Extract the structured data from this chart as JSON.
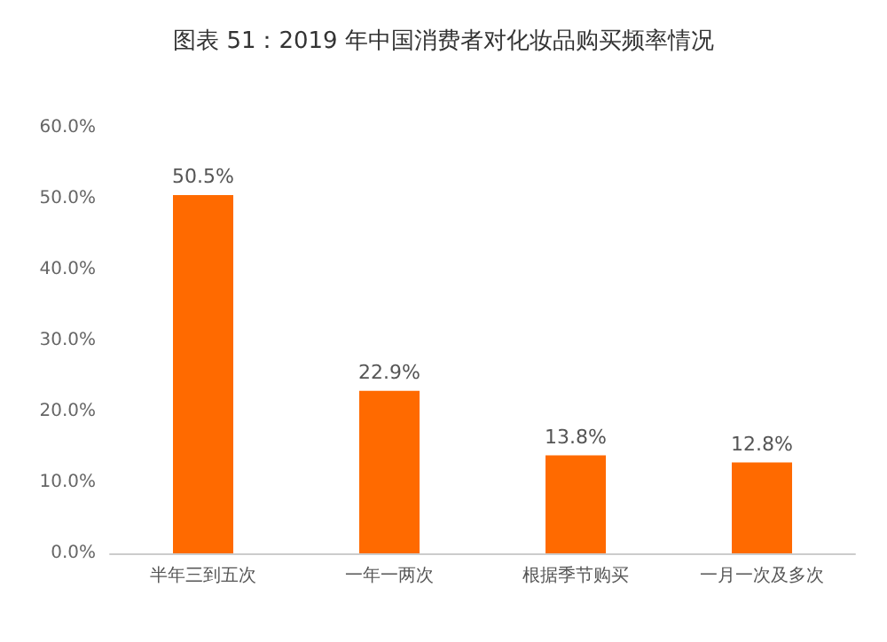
{
  "chart_data": {
    "type": "bar",
    "title": "图表 51：2019 年中国消费者对化妆品购买频率情况",
    "categories": [
      "半年三到五次",
      "一年一两次",
      "根据季节购买",
      "一月一次及多次"
    ],
    "values": [
      50.5,
      22.9,
      13.8,
      12.8
    ],
    "value_labels": [
      "50.5%",
      "22.9%",
      "13.8%",
      "12.8%"
    ],
    "color": "#ff6a00",
    "ylim": [
      0,
      60
    ],
    "yticks": [
      {
        "value": 0,
        "label": "0.0%"
      },
      {
        "value": 10,
        "label": "10.0%"
      },
      {
        "value": 20,
        "label": "20.0%"
      },
      {
        "value": 30,
        "label": "30.0%"
      },
      {
        "value": 40,
        "label": "40.0%"
      },
      {
        "value": 50,
        "label": "50.0%"
      },
      {
        "value": 60,
        "label": "60.0%"
      }
    ],
    "grid": false
  }
}
